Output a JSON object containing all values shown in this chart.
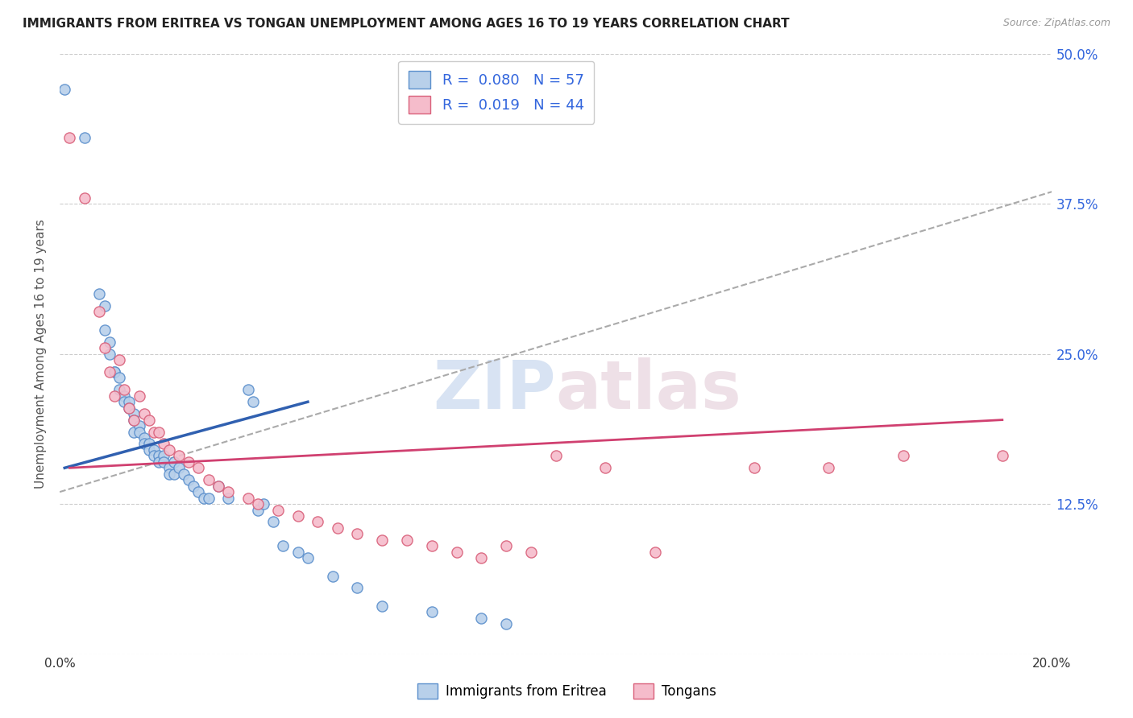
{
  "title": "IMMIGRANTS FROM ERITREA VS TONGAN UNEMPLOYMENT AMONG AGES 16 TO 19 YEARS CORRELATION CHART",
  "source": "Source: ZipAtlas.com",
  "ylabel": "Unemployment Among Ages 16 to 19 years",
  "xlim": [
    0.0,
    0.2
  ],
  "ylim": [
    0.0,
    0.5
  ],
  "legend_R1": "0.080",
  "legend_N1": "57",
  "legend_R2": "0.019",
  "legend_N2": "44",
  "color_eritrea_fill": "#b8d0ea",
  "color_eritrea_edge": "#5b8fcc",
  "color_tongan_fill": "#f5bccb",
  "color_tongan_edge": "#d9607a",
  "color_eritrea_line": "#3060b0",
  "color_tongan_line": "#d04070",
  "color_dashed": "#aaaaaa",
  "eritrea_x": [
    0.001,
    0.005,
    0.008,
    0.009,
    0.009,
    0.01,
    0.01,
    0.011,
    0.011,
    0.012,
    0.012,
    0.013,
    0.013,
    0.014,
    0.014,
    0.015,
    0.015,
    0.015,
    0.016,
    0.016,
    0.017,
    0.017,
    0.018,
    0.018,
    0.019,
    0.019,
    0.02,
    0.02,
    0.021,
    0.021,
    0.022,
    0.022,
    0.023,
    0.023,
    0.024,
    0.025,
    0.026,
    0.027,
    0.028,
    0.029,
    0.03,
    0.032,
    0.034,
    0.038,
    0.039,
    0.04,
    0.041,
    0.043,
    0.045,
    0.048,
    0.05,
    0.055,
    0.06,
    0.065,
    0.075,
    0.085,
    0.09
  ],
  "eritrea_y": [
    0.47,
    0.43,
    0.3,
    0.29,
    0.27,
    0.26,
    0.25,
    0.235,
    0.235,
    0.23,
    0.22,
    0.215,
    0.21,
    0.21,
    0.205,
    0.2,
    0.195,
    0.185,
    0.19,
    0.185,
    0.18,
    0.175,
    0.175,
    0.17,
    0.17,
    0.165,
    0.165,
    0.16,
    0.165,
    0.16,
    0.155,
    0.15,
    0.15,
    0.16,
    0.155,
    0.15,
    0.145,
    0.14,
    0.135,
    0.13,
    0.13,
    0.14,
    0.13,
    0.22,
    0.21,
    0.12,
    0.125,
    0.11,
    0.09,
    0.085,
    0.08,
    0.065,
    0.055,
    0.04,
    0.035,
    0.03,
    0.025
  ],
  "tongan_x": [
    0.002,
    0.005,
    0.008,
    0.009,
    0.01,
    0.011,
    0.012,
    0.013,
    0.014,
    0.015,
    0.016,
    0.017,
    0.018,
    0.019,
    0.02,
    0.021,
    0.022,
    0.024,
    0.026,
    0.028,
    0.03,
    0.032,
    0.034,
    0.038,
    0.04,
    0.044,
    0.048,
    0.052,
    0.056,
    0.06,
    0.065,
    0.07,
    0.075,
    0.08,
    0.085,
    0.09,
    0.095,
    0.1,
    0.11,
    0.12,
    0.14,
    0.155,
    0.17,
    0.19
  ],
  "tongan_y": [
    0.43,
    0.38,
    0.285,
    0.255,
    0.235,
    0.215,
    0.245,
    0.22,
    0.205,
    0.195,
    0.215,
    0.2,
    0.195,
    0.185,
    0.185,
    0.175,
    0.17,
    0.165,
    0.16,
    0.155,
    0.145,
    0.14,
    0.135,
    0.13,
    0.125,
    0.12,
    0.115,
    0.11,
    0.105,
    0.1,
    0.095,
    0.095,
    0.09,
    0.085,
    0.08,
    0.09,
    0.085,
    0.165,
    0.155,
    0.085,
    0.155,
    0.155,
    0.165,
    0.165
  ],
  "eritrea_trendline_x": [
    0.001,
    0.05
  ],
  "eritrea_trendline_y": [
    0.155,
    0.21
  ],
  "tongan_trendline_x": [
    0.002,
    0.19
  ],
  "tongan_trendline_y": [
    0.155,
    0.195
  ],
  "dashed_trendline_x": [
    0.0,
    0.2
  ],
  "dashed_trendline_y": [
    0.135,
    0.385
  ]
}
